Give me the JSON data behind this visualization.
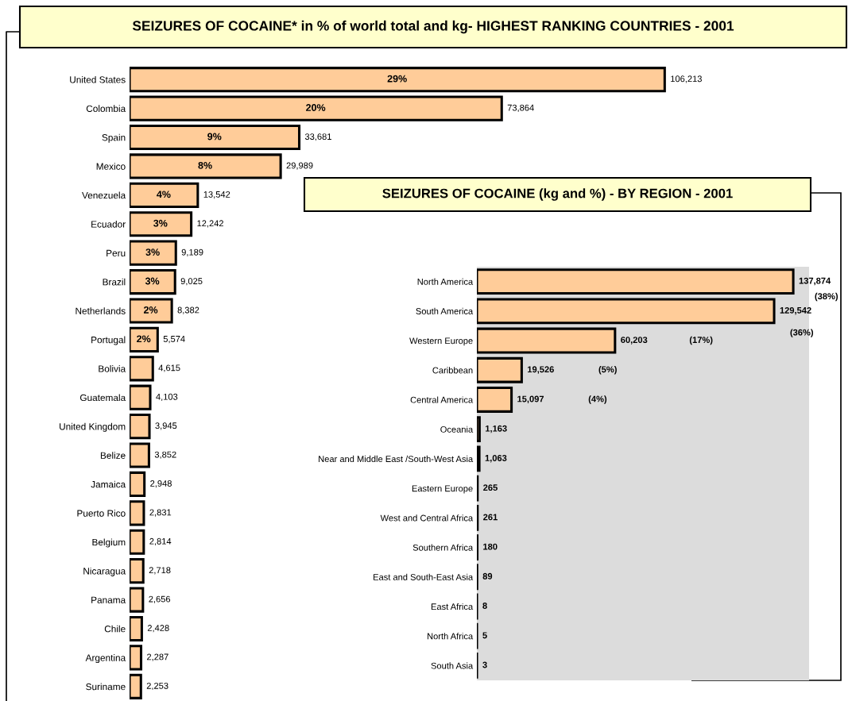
{
  "chart_data": [
    {
      "type": "bar",
      "orientation": "horizontal",
      "title": "SEIZURES OF COCAINE* in % of world total and kg- HIGHEST RANKING COUNTRIES - 2001",
      "color": "#ffcc99",
      "tick_labels": "y",
      "categories": [
        "United States",
        "Colombia",
        "Spain",
        "Mexico",
        "Venezuela",
        "Ecuador",
        "Peru",
        "Brazil",
        "Netherlands",
        "Portugal",
        "Bolivia",
        "Guatemala",
        "United Kingdom",
        "Belize",
        "Jamaica",
        "Puerto Rico",
        "Belgium",
        "Nicaragua",
        "Panama",
        "Chile",
        "Argentina",
        "Suriname"
      ],
      "values": [
        106213,
        73864,
        33681,
        29989,
        13542,
        12242,
        9189,
        9025,
        8382,
        5574,
        4615,
        4103,
        3945,
        3852,
        2948,
        2831,
        2814,
        2718,
        2656,
        2428,
        2287,
        2253
      ],
      "value_labels": [
        "106,213",
        "73,864",
        "33,681",
        "29,989",
        "13,542",
        "12,242",
        "9,189",
        "9,025",
        "8,382",
        "5,574",
        "4,615",
        "4,103",
        "3,945",
        "3,852",
        "2,948",
        "2,831",
        "2,814",
        "2,718",
        "2,656",
        "2,428",
        "2,287",
        "2,253"
      ],
      "annotations": [
        "29%",
        "20%",
        "9%",
        "8%",
        "4%",
        "3%",
        "3%",
        "3%",
        "2%",
        "2%"
      ]
    },
    {
      "type": "bar",
      "orientation": "horizontal",
      "title": "SEIZURES OF COCAINE (kg and %) - BY REGION - 2001",
      "color": "#ffcc99",
      "tick_labels": "y",
      "categories": [
        "North America",
        "South America",
        "Western Europe",
        "Caribbean",
        "Central America",
        "Oceania",
        "Near and Middle East /South-West Asia",
        "Eastern Europe",
        "West and Central Africa",
        "Southern Africa",
        "East and South-East Asia",
        "East Africa",
        "North Africa",
        "South Asia"
      ],
      "values": [
        137874,
        129542,
        60203,
        19526,
        15097,
        1163,
        1063,
        265,
        261,
        180,
        89,
        8,
        5,
        3
      ],
      "value_labels": [
        "137,874",
        "129,542",
        "60,203",
        "19,526",
        "15,097",
        "1,163",
        "1,063",
        "265",
        "261",
        "180",
        "89",
        "8",
        "5",
        "3"
      ],
      "annotations": [
        "(38%)",
        "(36%)",
        "(17%)",
        "(5%)",
        "(4%)"
      ]
    }
  ]
}
